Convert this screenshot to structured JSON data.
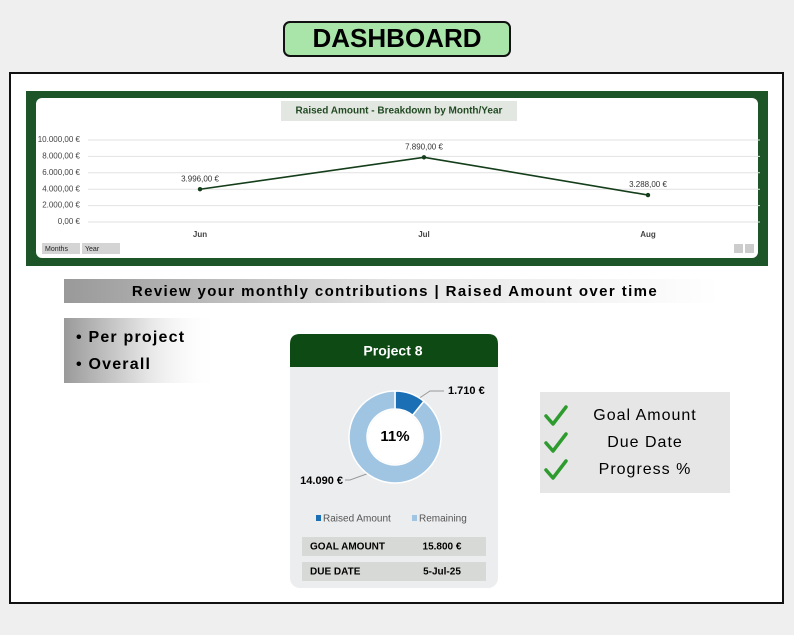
{
  "header": {
    "title": "DASHBOARD"
  },
  "chart_data": [
    {
      "type": "line",
      "title": "Raised Amount - Breakdown by Month/Year",
      "categories": [
        "Jun",
        "Jul",
        "Aug"
      ],
      "values": [
        3996,
        7890,
        3288
      ],
      "value_labels": [
        "3.996,00 €",
        "7.890,00 €",
        "3.288,00 €"
      ],
      "color": "#143d1a",
      "ylim": [
        0,
        10000
      ],
      "yticks": [
        {
          "value": 0,
          "label": "0,00 €"
        },
        {
          "value": 2000,
          "label": "2.000,00 €"
        },
        {
          "value": 4000,
          "label": "4.000,00 €"
        },
        {
          "value": 6000,
          "label": "6.000,00 €"
        },
        {
          "value": 8000,
          "label": "8.000,00 €"
        },
        {
          "value": 10000,
          "label": "10.000,00 €"
        }
      ],
      "grid": true,
      "filters": [
        "Months",
        "Year"
      ]
    },
    {
      "type": "pie",
      "title": "Project 8",
      "center_label": "11%",
      "categories": [
        "Raised Amount",
        "Remaining"
      ],
      "values": [
        1710,
        14090
      ],
      "value_labels": [
        "1.710 €",
        "14.090 €"
      ],
      "colors": [
        "#1a6fb5",
        "#9fc5e3"
      ],
      "rows": [
        [
          "GOAL AMOUNT",
          "15.800 €"
        ],
        [
          "DUE DATE",
          "5-Jul-25"
        ]
      ]
    }
  ],
  "banner": "Review your monthly contributions |  Raised Amount over time",
  "bullets": [
    "• Per project",
    "• Overall"
  ],
  "checklist": [
    "Goal Amount",
    "Due Date",
    "Progress %"
  ]
}
